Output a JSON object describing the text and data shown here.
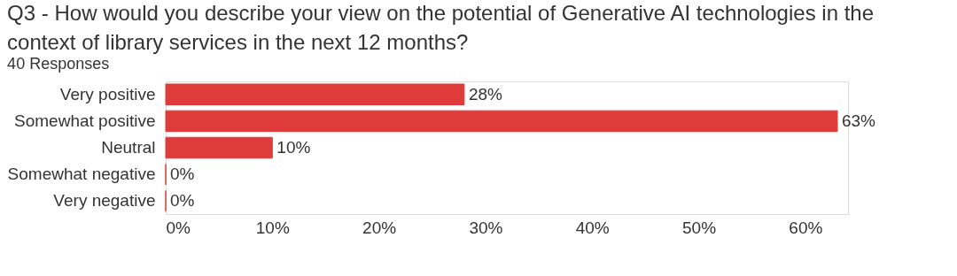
{
  "chart_data": {
    "type": "bar",
    "orientation": "horizontal",
    "title": "Q3 - How would you describe your view on the potential of Generative AI technologies in the\ncontext of library services in the next 12 months?",
    "subtitle": "40 Responses",
    "categories": [
      "Very positive",
      "Somewhat positive",
      "Neutral",
      "Somewhat negative",
      "Very negative"
    ],
    "values": [
      28,
      63,
      10,
      0,
      0
    ],
    "color": "#e03b3b",
    "value_labels": [
      "28%",
      "63%",
      "10%",
      "0%",
      "0%"
    ],
    "xlim": [
      0,
      64
    ],
    "xticks": [
      {
        "value": 0,
        "label": "0%"
      },
      {
        "value": 10,
        "label": "10%"
      },
      {
        "value": 20,
        "label": "20%"
      },
      {
        "value": 30,
        "label": "30%"
      },
      {
        "value": 40,
        "label": "40%"
      },
      {
        "value": 50,
        "label": "50%"
      },
      {
        "value": 60,
        "label": "60%"
      }
    ],
    "grid": false,
    "legend": false
  }
}
